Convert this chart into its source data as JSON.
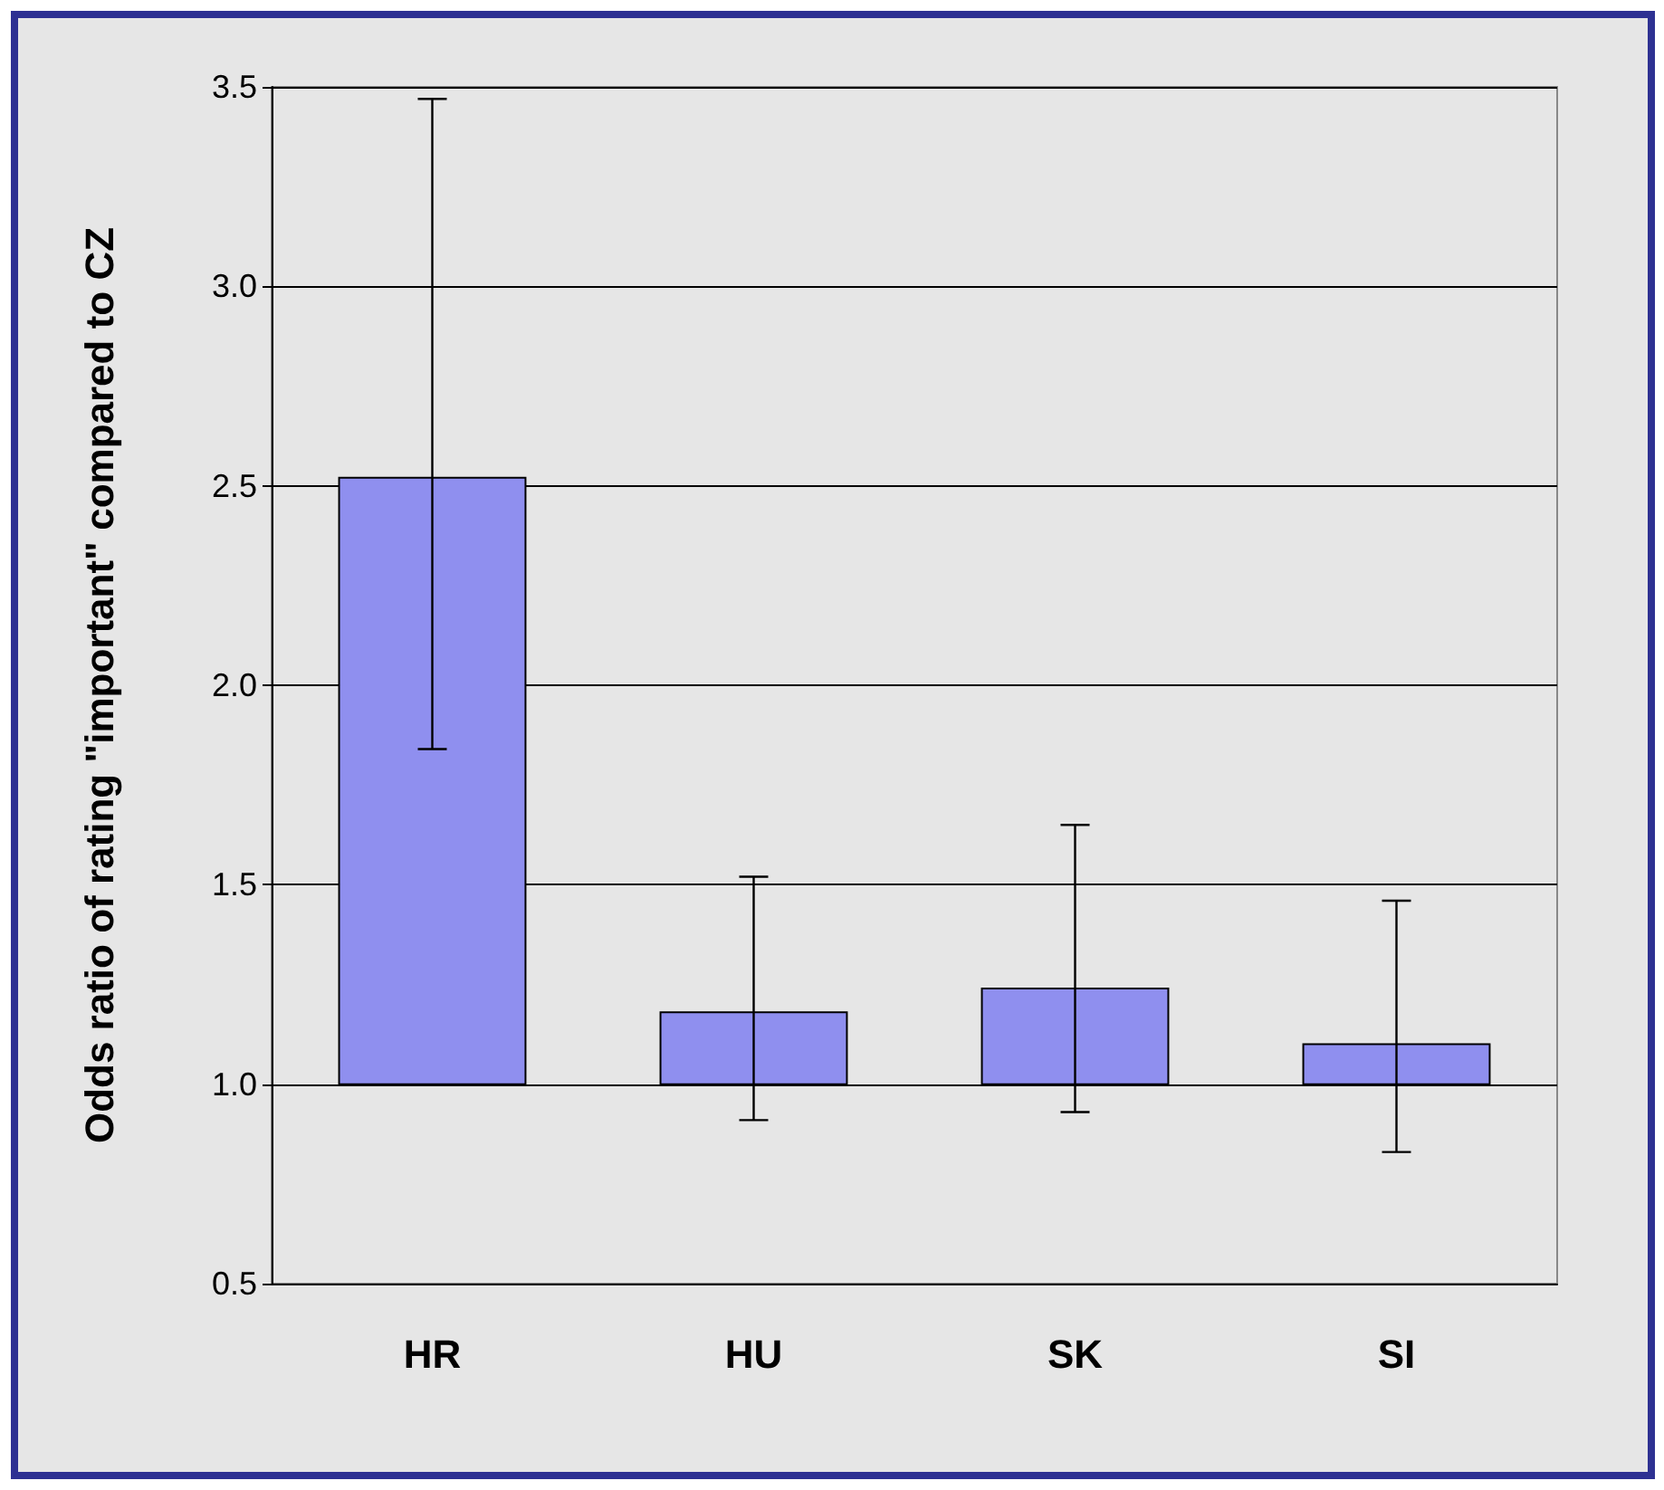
{
  "chart_data": {
    "type": "bar",
    "ylabel": "Odds ratio of rating \"important\" compared to CZ",
    "categories": [
      "HR",
      "HU",
      "SK",
      "SI"
    ],
    "base": [
      1,
      1,
      1,
      1
    ],
    "values": [
      1.52,
      0.18,
      0.24,
      0.1
    ],
    "errors": [
      [
        1.84,
        3.47
      ],
      [
        0.91,
        1.52
      ],
      [
        0.93,
        1.65
      ],
      [
        0.83,
        1.46
      ]
    ],
    "color": "#8f8fef",
    "ylim": [
      0.5,
      3.5
    ],
    "yticks": [
      {
        "value": 0.5,
        "label": "0.5"
      },
      {
        "value": 1,
        "label": "1.0"
      },
      {
        "value": 1.5,
        "label": "1.5"
      },
      {
        "value": 2,
        "label": "2.0"
      },
      {
        "value": 2.5,
        "label": "2.5"
      },
      {
        "value": 3,
        "label": "3.0"
      },
      {
        "value": 3.5,
        "label": "3.5"
      }
    ],
    "grid": "y"
  }
}
